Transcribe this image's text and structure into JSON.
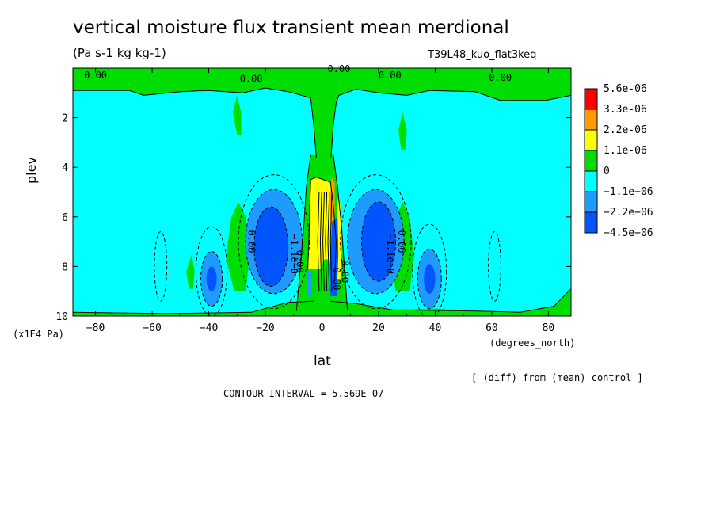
{
  "header": {
    "title": "vertical moisture flux transient mean merdional",
    "units": "(Pa s-1 kg kg-1)",
    "experiment": "T39L48_kuo_flat3keq"
  },
  "axes": {
    "ylabel": "plev",
    "yunit": "(x1E4 Pa)",
    "xlabel": "lat",
    "xunit": "(degrees_north)"
  },
  "footer": {
    "note": "[ (diff) from (mean) control ]",
    "contour_interval": "CONTOUR INTERVAL = 5.569E-07"
  },
  "chart_data": {
    "type": "heatmap",
    "title": "vertical moisture flux transient mean merdional",
    "subtitle": "(Pa s-1 kg kg-1)",
    "xlabel": "lat",
    "ylabel": "plev",
    "xlim": [
      -88,
      88
    ],
    "ylim": [
      10,
      0
    ],
    "xticks": [
      -80,
      -60,
      -40,
      -20,
      0,
      20,
      40,
      60,
      80
    ],
    "yticks": [
      2,
      4,
      6,
      8,
      10
    ],
    "colorbar": [
      {
        "label": "5.6e-06",
        "color": "#ff0000"
      },
      {
        "label": "3.3e-06",
        "color": "#ff9a00"
      },
      {
        "label": "2.2e-06",
        "color": "#ffff00"
      },
      {
        "label": "1.1e-06",
        "color": "#00dd00"
      },
      {
        "label": "0",
        "color": "#00ffff"
      },
      {
        "label": "−1.1e−06",
        "color": "#1e9bff"
      },
      {
        "label": "−2.2e−06",
        "color": "#0055ff"
      },
      {
        "label": "−4.5e−06",
        "color": null
      }
    ],
    "contour_labels": [
      "0.00",
      "0.00",
      "0.00",
      "0.00",
      "0.00",
      "0.00",
      "0.00",
      "−1.1e−0",
      "−1.1e−0",
      "0.00",
      "0.00",
      "0.00"
    ]
  }
}
